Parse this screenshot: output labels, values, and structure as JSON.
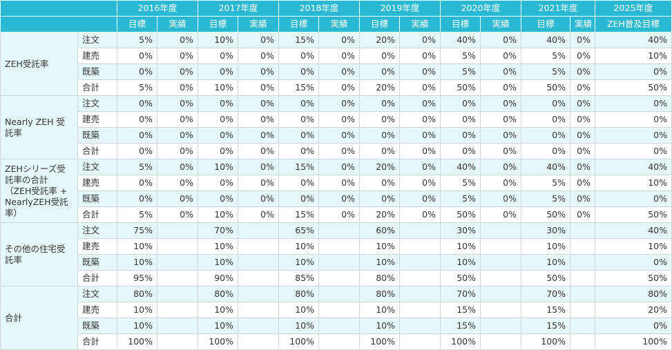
{
  "years": [
    "2016年度",
    "2017年度",
    "2018年度",
    "2019年度",
    "2020年度",
    "2021年度"
  ],
  "final_year": "2025年度",
  "col_target": "目標",
  "col_actual": "実績",
  "col_final": "ZEH普及目標",
  "groups": [
    {
      "label": "ZEH受託率",
      "rows": [
        {
          "sub": "注文",
          "cells": [
            "5%",
            "0%",
            "10%",
            "0%",
            "15%",
            "0%",
            "20%",
            "0%",
            "40%",
            "0%",
            "40%",
            "0%",
            "40%"
          ]
        },
        {
          "sub": "建売",
          "cells": [
            "0%",
            "0%",
            "0%",
            "0%",
            "0%",
            "0%",
            "0%",
            "0%",
            "5%",
            "0%",
            "5%",
            "0%",
            "10%"
          ]
        },
        {
          "sub": "既築",
          "cells": [
            "0%",
            "0%",
            "0%",
            "0%",
            "0%",
            "0%",
            "0%",
            "0%",
            "5%",
            "0%",
            "5%",
            "0%",
            "0%"
          ]
        },
        {
          "sub": "合計",
          "cells": [
            "5%",
            "0%",
            "10%",
            "0%",
            "15%",
            "0%",
            "20%",
            "0%",
            "50%",
            "0%",
            "50%",
            "0%",
            "50%"
          ]
        }
      ]
    },
    {
      "label": "Nearly ZEH 受託率",
      "rows": [
        {
          "sub": "注文",
          "cells": [
            "0%",
            "0%",
            "0%",
            "0%",
            "0%",
            "0%",
            "0%",
            "0%",
            "0%",
            "0%",
            "0%",
            "0%",
            "0%"
          ]
        },
        {
          "sub": "建売",
          "cells": [
            "0%",
            "0%",
            "0%",
            "0%",
            "0%",
            "0%",
            "0%",
            "0%",
            "0%",
            "0%",
            "0%",
            "0%",
            "0%"
          ]
        },
        {
          "sub": "既築",
          "cells": [
            "0%",
            "0%",
            "0%",
            "0%",
            "0%",
            "0%",
            "0%",
            "0%",
            "0%",
            "0%",
            "0%",
            "0%",
            "0%"
          ]
        },
        {
          "sub": "合計",
          "cells": [
            "0%",
            "0%",
            "0%",
            "0%",
            "0%",
            "0%",
            "0%",
            "0%",
            "0%",
            "0%",
            "0%",
            "0%",
            "0%"
          ]
        }
      ]
    },
    {
      "label": "ZEHシリーズ受託率の合計（ZEH受託率 + NearlyZEH受託率）",
      "rows": [
        {
          "sub": "注文",
          "cells": [
            "5%",
            "0%",
            "10%",
            "0%",
            "15%",
            "0%",
            "20%",
            "0%",
            "40%",
            "0%",
            "40%",
            "0%",
            "40%"
          ]
        },
        {
          "sub": "建売",
          "cells": [
            "0%",
            "0%",
            "0%",
            "0%",
            "0%",
            "0%",
            "0%",
            "0%",
            "5%",
            "0%",
            "5%",
            "0%",
            "10%"
          ]
        },
        {
          "sub": "既築",
          "cells": [
            "0%",
            "0%",
            "0%",
            "0%",
            "0%",
            "0%",
            "0%",
            "0%",
            "5%",
            "0%",
            "5%",
            "0%",
            "0%"
          ]
        },
        {
          "sub": "合計",
          "cells": [
            "5%",
            "0%",
            "10%",
            "0%",
            "15%",
            "0%",
            "20%",
            "0%",
            "50%",
            "0%",
            "50%",
            "0%",
            "50%"
          ]
        }
      ]
    },
    {
      "label": "その他の住宅受託率",
      "rows": [
        {
          "sub": "注文",
          "cells": [
            "75%",
            "",
            "70%",
            "",
            "65%",
            "",
            "60%",
            "",
            "30%",
            "",
            "30%",
            "",
            "40%"
          ]
        },
        {
          "sub": "建売",
          "cells": [
            "10%",
            "",
            "10%",
            "",
            "10%",
            "",
            "10%",
            "",
            "10%",
            "",
            "10%",
            "",
            "10%"
          ]
        },
        {
          "sub": "既築",
          "cells": [
            "10%",
            "",
            "10%",
            "",
            "10%",
            "",
            "10%",
            "",
            "10%",
            "",
            "10%",
            "",
            "0%"
          ]
        },
        {
          "sub": "合計",
          "cells": [
            "95%",
            "",
            "90%",
            "",
            "85%",
            "",
            "80%",
            "",
            "50%",
            "",
            "50%",
            "",
            "50%"
          ]
        }
      ]
    },
    {
      "label": "合計",
      "rows": [
        {
          "sub": "注文",
          "cells": [
            "80%",
            "",
            "80%",
            "",
            "80%",
            "",
            "80%",
            "",
            "70%",
            "",
            "70%",
            "",
            "80%"
          ]
        },
        {
          "sub": "建売",
          "cells": [
            "10%",
            "",
            "10%",
            "",
            "10%",
            "",
            "10%",
            "",
            "15%",
            "",
            "15%",
            "",
            "20%"
          ]
        },
        {
          "sub": "既築",
          "cells": [
            "10%",
            "",
            "10%",
            "",
            "10%",
            "",
            "10%",
            "",
            "15%",
            "",
            "15%",
            "",
            "0%"
          ]
        },
        {
          "sub": "合計",
          "cells": [
            "100%",
            "",
            "100%",
            "",
            "100%",
            "",
            "100%",
            "",
            "100%",
            "",
            "100%",
            "",
            "100%"
          ]
        }
      ]
    }
  ]
}
